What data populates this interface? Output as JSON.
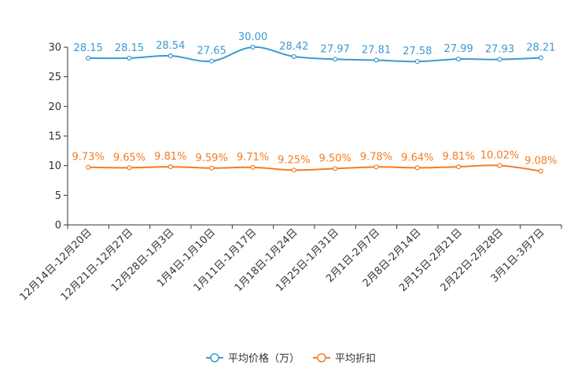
{
  "chart_data": {
    "type": "line",
    "title": "",
    "xlabel": "",
    "ylabel": "",
    "ylim": [
      0,
      30
    ],
    "yticks": [
      0,
      5,
      10,
      15,
      20,
      25,
      30
    ],
    "grid": false,
    "legend_position": "bottom",
    "categories": [
      "12月14日-12月20日",
      "12月21日-12月27日",
      "12月28日-1月3日",
      "1月4日-1月10日",
      "1月11日-1月17日",
      "1月18日-1月24日",
      "1月25日-1月31日",
      "2月1日-2月7日",
      "2月8日-2月14日",
      "2月15日-2月21日",
      "2月22日-2月28日",
      "3月1日-3月7日"
    ],
    "series": [
      {
        "name": "平均价格（万）",
        "color": "#3d9ad1",
        "values": [
          28.15,
          28.15,
          28.54,
          27.65,
          30.0,
          28.42,
          27.97,
          27.81,
          27.58,
          27.99,
          27.93,
          28.21
        ],
        "labels": [
          "28.15",
          "28.15",
          "28.54",
          "27.65",
          "30.00",
          "28.42",
          "27.97",
          "27.81",
          "27.58",
          "27.99",
          "27.93",
          "28.21"
        ]
      },
      {
        "name": "平均折扣",
        "color": "#f47c20",
        "values": [
          9.73,
          9.65,
          9.81,
          9.59,
          9.71,
          9.25,
          9.5,
          9.78,
          9.64,
          9.81,
          10.02,
          9.08
        ],
        "labels": [
          "9.73%",
          "9.65%",
          "9.81%",
          "9.59%",
          "9.71%",
          "9.25%",
          "9.50%",
          "9.78%",
          "9.64%",
          "9.81%",
          "10.02%",
          "9.08%"
        ]
      }
    ]
  }
}
